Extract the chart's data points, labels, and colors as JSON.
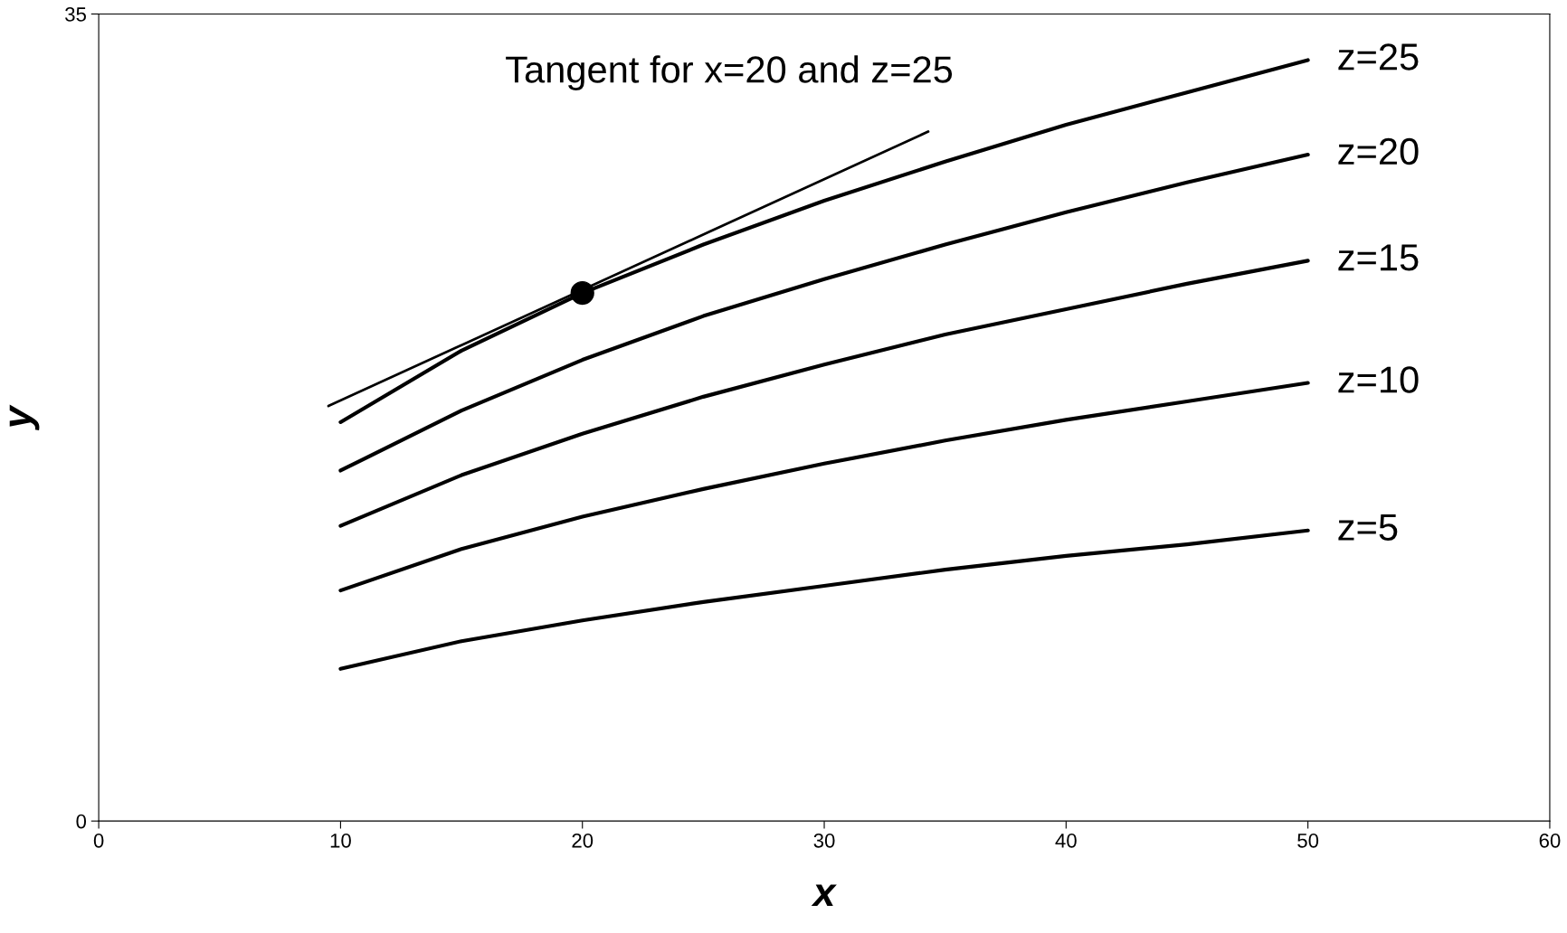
{
  "chart_data": {
    "type": "line",
    "xlabel": "x",
    "ylabel": "y",
    "x": [
      10,
      15,
      20,
      25,
      30,
      35,
      40,
      45,
      50
    ],
    "xlim": [
      0,
      60
    ],
    "xticks": [
      0,
      10,
      20,
      30,
      40,
      50,
      60
    ],
    "ylim": [
      0,
      35
    ],
    "yticks": [
      0,
      35
    ],
    "grid": false,
    "legend": false,
    "marker": "none",
    "line_style": "solid",
    "annotations": [
      "Tangent for x=20 and z=25"
    ],
    "series": [
      {
        "name": "z=25",
        "color": "#000000",
        "values": [
          17.3,
          20.4,
          22.9,
          25.0,
          26.9,
          28.6,
          30.2,
          31.6,
          33.0
        ]
      },
      {
        "name": "z=20",
        "color": "#000000",
        "values": [
          15.2,
          17.8,
          20.0,
          21.9,
          23.5,
          25.0,
          26.4,
          27.7,
          28.9
        ]
      },
      {
        "name": "z=15",
        "color": "#000000",
        "values": [
          12.8,
          15.0,
          16.8,
          18.4,
          19.8,
          21.1,
          22.2,
          23.3,
          24.3
        ]
      },
      {
        "name": "z=10",
        "color": "#000000",
        "values": [
          10.0,
          11.8,
          13.2,
          14.4,
          15.5,
          16.5,
          17.4,
          18.2,
          19.0
        ]
      },
      {
        "name": "z=5",
        "color": "#000000",
        "values": [
          6.6,
          7.8,
          8.7,
          9.5,
          10.2,
          10.9,
          11.5,
          12.0,
          12.6
        ]
      },
      {
        "type": "line",
        "color": "#000000",
        "x": [
          9.5,
          34.3
        ],
        "values": [
          18.0,
          29.9
        ]
      },
      {
        "type": "scatter",
        "color": "#000000",
        "x": [
          20
        ],
        "values": [
          22.9
        ],
        "marker": "circle"
      }
    ]
  }
}
